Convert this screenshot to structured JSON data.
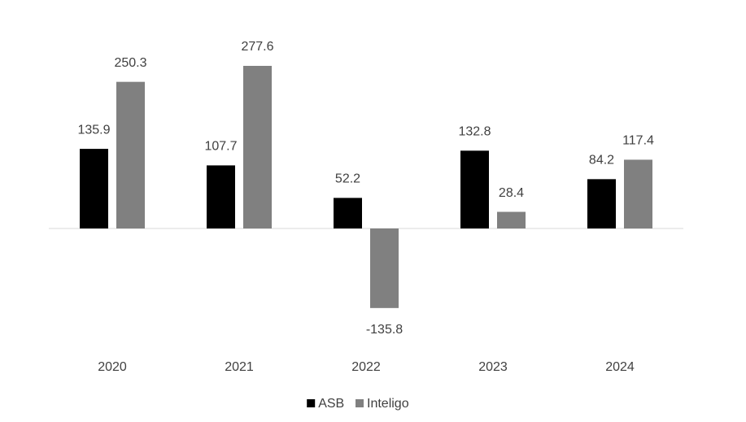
{
  "chart_data": {
    "type": "bar",
    "categories": [
      "2020",
      "2021",
      "2022",
      "2023",
      "2024"
    ],
    "series": [
      {
        "name": "ASB",
        "color": "#000000",
        "values": [
          135.9,
          107.7,
          52.2,
          132.8,
          84.2
        ]
      },
      {
        "name": "Inteligo",
        "color": "#808080",
        "values": [
          250.3,
          277.6,
          -135.8,
          28.4,
          117.4
        ]
      }
    ],
    "legend": "bottom"
  }
}
